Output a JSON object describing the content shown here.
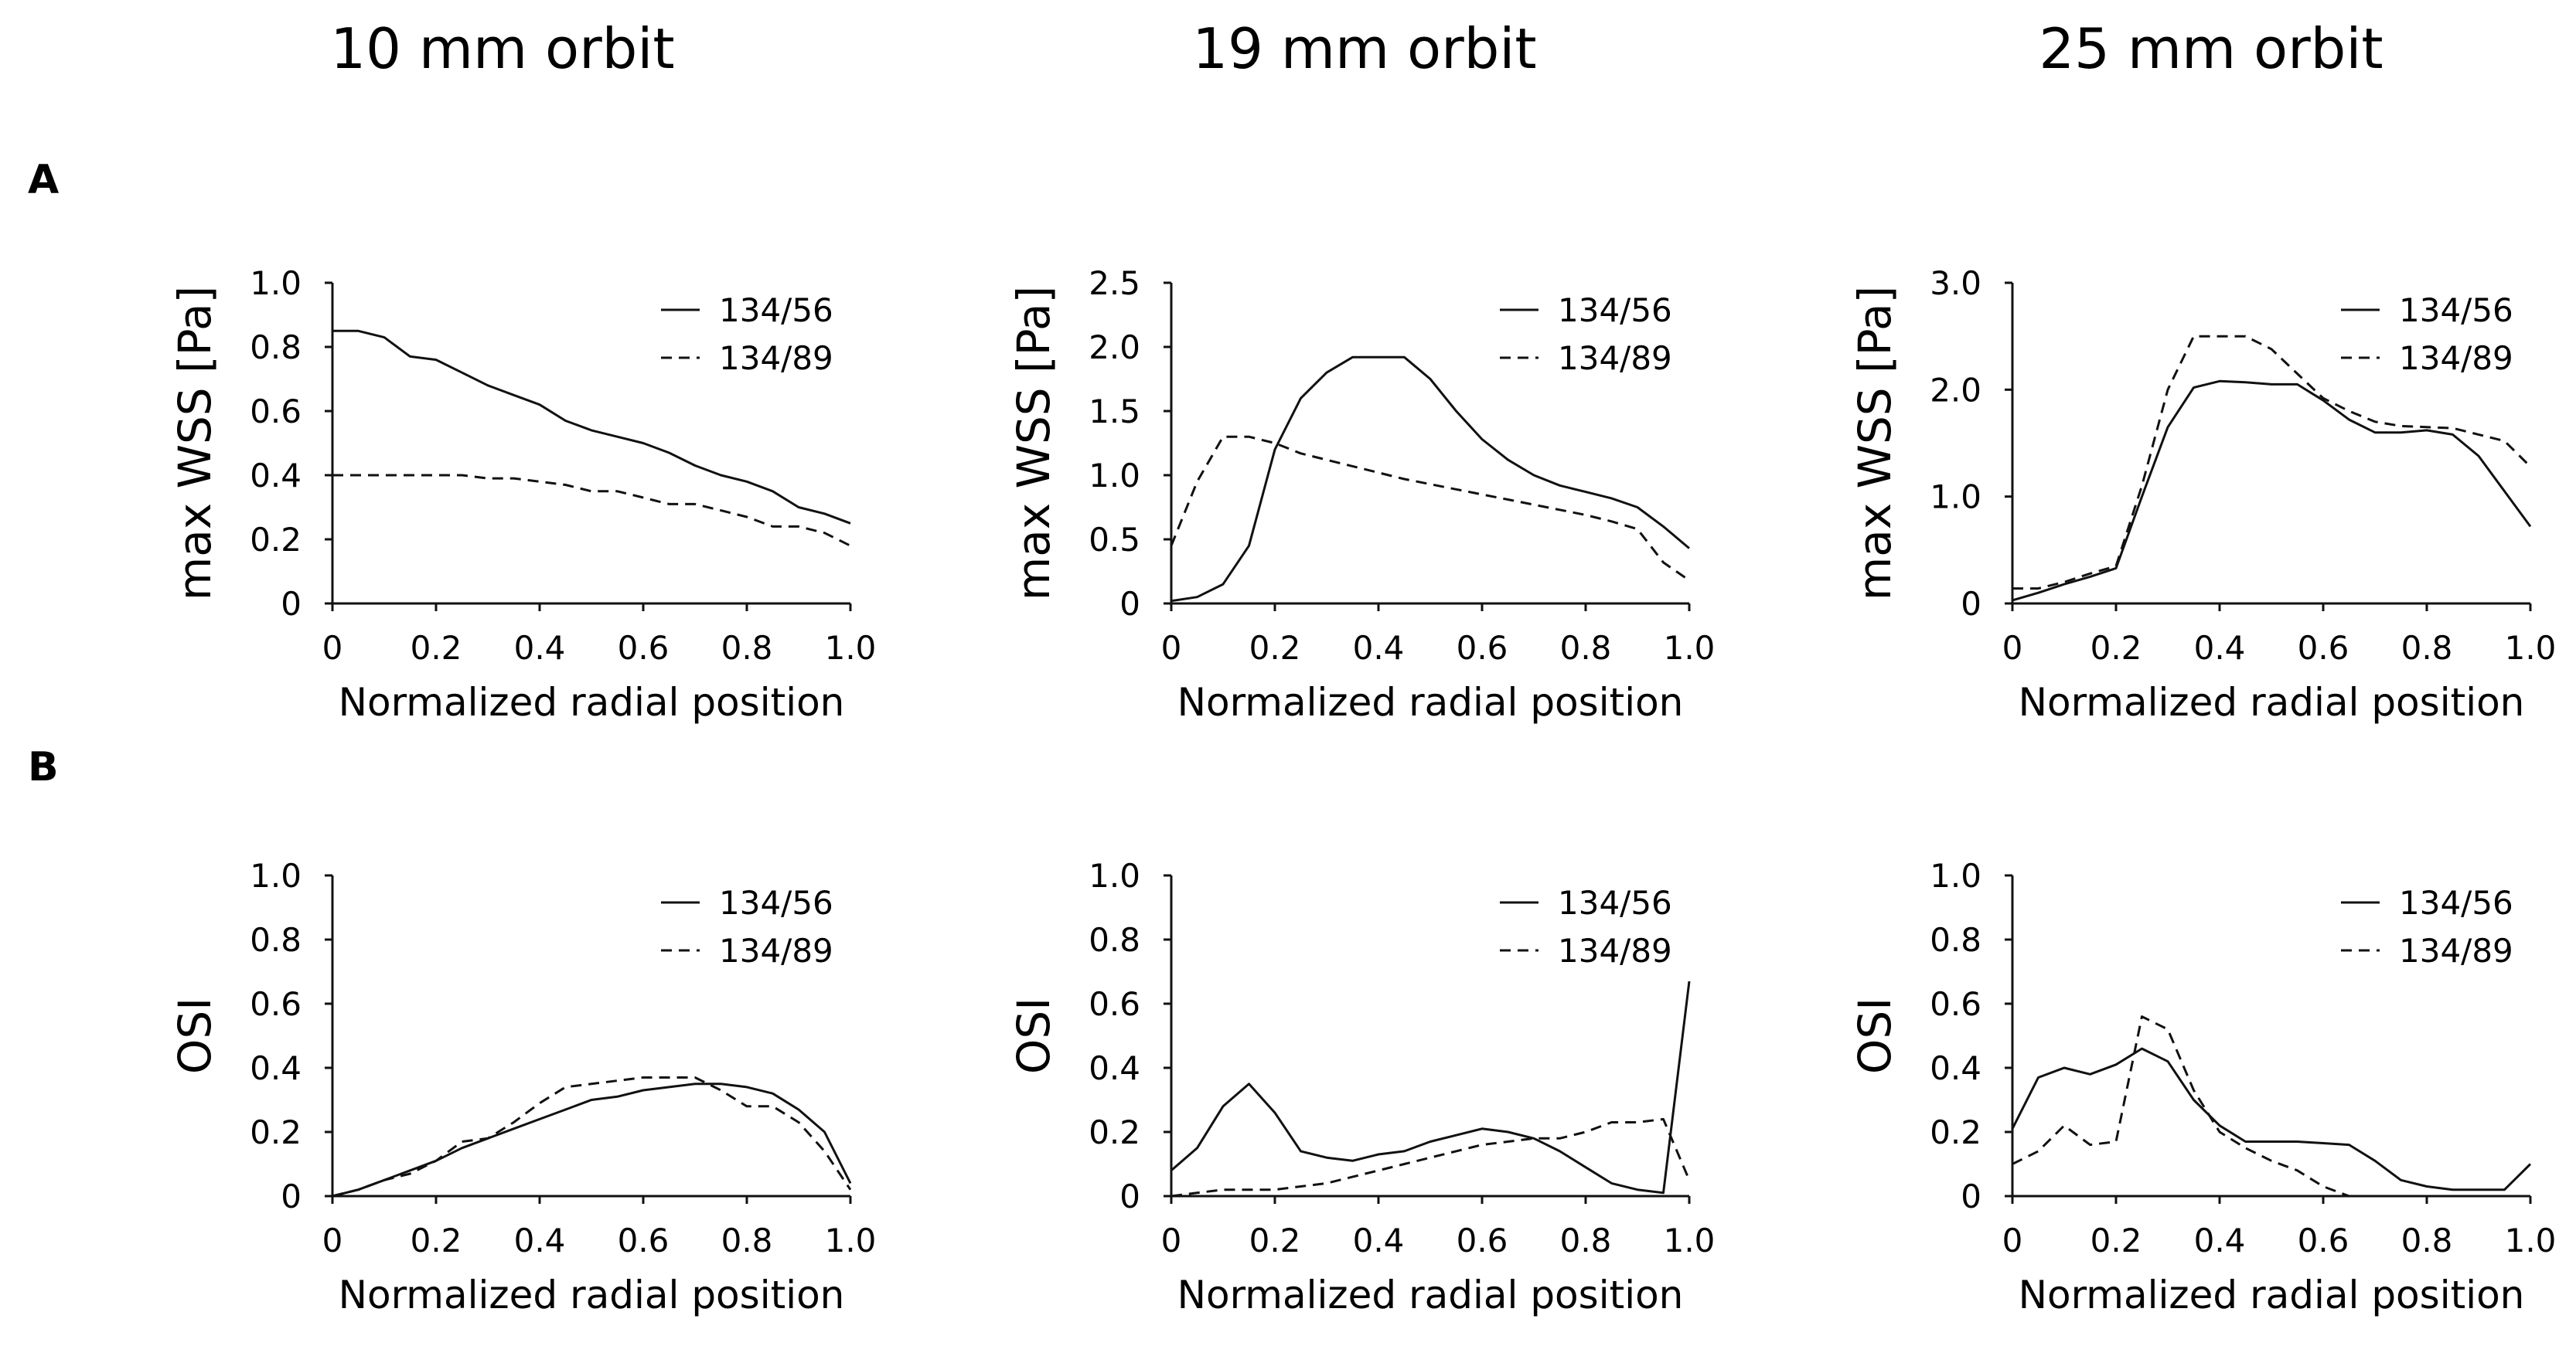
{
  "figure": {
    "column_titles": [
      "10 mm orbit",
      "19 mm orbit",
      "25 mm orbit"
    ],
    "row_labels": [
      "A",
      "B"
    ]
  },
  "chart_data": [
    {
      "type": "line",
      "title": "10 mm orbit",
      "row": "A",
      "xlabel": "Normalized radial position",
      "ylabel": "max WSS [Pa]",
      "xlim": [
        0,
        1
      ],
      "ylim": [
        0,
        1
      ],
      "xticks": [
        "0",
        "0.2",
        "0.4",
        "0.6",
        "0.8",
        "1.0"
      ],
      "yticks": [
        "0",
        "0.2",
        "0.4",
        "0.6",
        "0.8",
        "1.0"
      ],
      "legend_position": "top-right",
      "grid": false,
      "x": [
        0,
        0.05,
        0.1,
        0.15,
        0.2,
        0.25,
        0.3,
        0.35,
        0.4,
        0.45,
        0.5,
        0.55,
        0.6,
        0.65,
        0.7,
        0.75,
        0.8,
        0.85,
        0.9,
        0.95,
        1.0
      ],
      "series": [
        {
          "name": "134/56",
          "style": "solid",
          "values": [
            0.85,
            0.85,
            0.83,
            0.77,
            0.76,
            0.72,
            0.68,
            0.65,
            0.62,
            0.57,
            0.54,
            0.52,
            0.5,
            0.47,
            0.43,
            0.4,
            0.38,
            0.35,
            0.3,
            0.28,
            0.25
          ]
        },
        {
          "name": "134/89",
          "style": "dashed",
          "values": [
            0.4,
            0.4,
            0.4,
            0.4,
            0.4,
            0.4,
            0.39,
            0.39,
            0.38,
            0.37,
            0.35,
            0.35,
            0.33,
            0.31,
            0.31,
            0.29,
            0.27,
            0.24,
            0.24,
            0.22,
            0.18
          ]
        }
      ]
    },
    {
      "type": "line",
      "title": "19 mm orbit",
      "row": "A",
      "xlabel": "Normalized radial position",
      "ylabel": "max WSS [Pa]",
      "xlim": [
        0,
        1
      ],
      "ylim": [
        0,
        2.5
      ],
      "xticks": [
        "0",
        "0.2",
        "0.4",
        "0.6",
        "0.8",
        "1.0"
      ],
      "yticks": [
        "0",
        "0.5",
        "1.0",
        "1.5",
        "2.0",
        "2.5"
      ],
      "legend_position": "top-right",
      "grid": false,
      "x": [
        0,
        0.05,
        0.1,
        0.15,
        0.2,
        0.25,
        0.3,
        0.35,
        0.4,
        0.45,
        0.5,
        0.55,
        0.6,
        0.65,
        0.7,
        0.75,
        0.8,
        0.85,
        0.9,
        0.95,
        1.0
      ],
      "series": [
        {
          "name": "134/56",
          "style": "solid",
          "values": [
            0.02,
            0.05,
            0.15,
            0.45,
            1.2,
            1.6,
            1.8,
            1.92,
            1.92,
            1.92,
            1.75,
            1.5,
            1.28,
            1.12,
            1.0,
            0.92,
            0.87,
            0.82,
            0.75,
            0.6,
            0.43
          ]
        },
        {
          "name": "134/89",
          "style": "dashed",
          "values": [
            0.45,
            0.95,
            1.3,
            1.3,
            1.25,
            1.17,
            1.12,
            1.07,
            1.02,
            0.97,
            0.93,
            0.89,
            0.85,
            0.81,
            0.77,
            0.73,
            0.69,
            0.64,
            0.58,
            0.32,
            0.18
          ]
        }
      ]
    },
    {
      "type": "line",
      "title": "25 mm orbit",
      "row": "A",
      "xlabel": "Normalized radial position",
      "ylabel": "max WSS [Pa]",
      "xlim": [
        0,
        1
      ],
      "ylim": [
        0,
        3
      ],
      "xticks": [
        "0",
        "0.2",
        "0.4",
        "0.6",
        "0.8",
        "1.0"
      ],
      "yticks": [
        "0",
        "1.0",
        "2.0",
        "3.0"
      ],
      "legend_position": "top-right",
      "grid": false,
      "x": [
        0,
        0.05,
        0.1,
        0.15,
        0.2,
        0.25,
        0.3,
        0.35,
        0.4,
        0.45,
        0.5,
        0.55,
        0.6,
        0.65,
        0.7,
        0.75,
        0.8,
        0.85,
        0.9,
        0.95,
        1.0
      ],
      "series": [
        {
          "name": "134/56",
          "style": "solid",
          "values": [
            0.03,
            0.1,
            0.18,
            0.25,
            0.33,
            1.0,
            1.65,
            2.02,
            2.08,
            2.07,
            2.05,
            2.05,
            1.9,
            1.72,
            1.6,
            1.6,
            1.62,
            1.58,
            1.38,
            1.05,
            0.72
          ]
        },
        {
          "name": "134/89",
          "style": "dashed",
          "values": [
            0.14,
            0.14,
            0.2,
            0.28,
            0.35,
            1.1,
            2.0,
            2.5,
            2.5,
            2.5,
            2.38,
            2.15,
            1.92,
            1.8,
            1.7,
            1.66,
            1.65,
            1.64,
            1.58,
            1.52,
            1.28
          ]
        }
      ]
    },
    {
      "type": "line",
      "title": "10 mm orbit",
      "row": "B",
      "xlabel": "Normalized radial position",
      "ylabel": "OSI",
      "xlim": [
        0,
        1
      ],
      "ylim": [
        0,
        1
      ],
      "xticks": [
        "0",
        "0.2",
        "0.4",
        "0.6",
        "0.8",
        "1.0"
      ],
      "yticks": [
        "0",
        "0.2",
        "0.4",
        "0.6",
        "0.8",
        "1.0"
      ],
      "legend_position": "top-right",
      "grid": false,
      "x": [
        0,
        0.05,
        0.1,
        0.15,
        0.2,
        0.25,
        0.3,
        0.35,
        0.4,
        0.45,
        0.5,
        0.55,
        0.6,
        0.65,
        0.7,
        0.75,
        0.8,
        0.85,
        0.9,
        0.95,
        1.0
      ],
      "series": [
        {
          "name": "134/56",
          "style": "solid",
          "values": [
            0.0,
            0.02,
            0.05,
            0.08,
            0.11,
            0.15,
            0.18,
            0.21,
            0.24,
            0.27,
            0.3,
            0.31,
            0.33,
            0.34,
            0.35,
            0.35,
            0.34,
            0.32,
            0.27,
            0.2,
            0.04
          ]
        },
        {
          "name": "134/89",
          "style": "dashed",
          "values": [
            0.0,
            0.02,
            0.05,
            0.07,
            0.11,
            0.17,
            0.18,
            0.23,
            0.29,
            0.34,
            0.35,
            0.36,
            0.37,
            0.37,
            0.37,
            0.33,
            0.28,
            0.28,
            0.23,
            0.14,
            0.02
          ]
        }
      ]
    },
    {
      "type": "line",
      "title": "19 mm orbit",
      "row": "B",
      "xlabel": "Normalized radial position",
      "ylabel": "OSI",
      "xlim": [
        0,
        1
      ],
      "ylim": [
        0,
        1
      ],
      "xticks": [
        "0",
        "0.2",
        "0.4",
        "0.6",
        "0.8",
        "1.0"
      ],
      "yticks": [
        "0",
        "0.2",
        "0.4",
        "0.6",
        "0.8",
        "1.0"
      ],
      "legend_position": "top-right",
      "grid": false,
      "x": [
        0,
        0.05,
        0.1,
        0.15,
        0.2,
        0.25,
        0.3,
        0.35,
        0.4,
        0.45,
        0.5,
        0.55,
        0.6,
        0.65,
        0.7,
        0.75,
        0.8,
        0.85,
        0.9,
        0.95,
        1.0
      ],
      "series": [
        {
          "name": "134/56",
          "style": "solid",
          "values": [
            0.08,
            0.15,
            0.28,
            0.35,
            0.26,
            0.14,
            0.12,
            0.11,
            0.13,
            0.14,
            0.17,
            0.19,
            0.21,
            0.2,
            0.18,
            0.14,
            0.09,
            0.04,
            0.02,
            0.01,
            0.67
          ]
        },
        {
          "name": "134/89",
          "style": "dashed",
          "values": [
            0.0,
            0.01,
            0.02,
            0.02,
            0.02,
            0.03,
            0.04,
            0.06,
            0.08,
            0.1,
            0.12,
            0.14,
            0.16,
            0.17,
            0.18,
            0.18,
            0.2,
            0.23,
            0.23,
            0.24,
            0.05
          ]
        }
      ]
    },
    {
      "type": "line",
      "title": "25 mm orbit",
      "row": "B",
      "xlabel": "Normalized radial position",
      "ylabel": "OSI",
      "xlim": [
        0,
        1
      ],
      "ylim": [
        0,
        1
      ],
      "xticks": [
        "0",
        "0.2",
        "0.4",
        "0.6",
        "0.8",
        "1.0"
      ],
      "yticks": [
        "0",
        "0.2",
        "0.4",
        "0.6",
        "0.8",
        "1.0"
      ],
      "legend_position": "top-right",
      "grid": false,
      "x": [
        0,
        0.05,
        0.1,
        0.15,
        0.2,
        0.25,
        0.3,
        0.35,
        0.4,
        0.45,
        0.5,
        0.55,
        0.6,
        0.65,
        0.7,
        0.75,
        0.8,
        0.85,
        0.9,
        0.95,
        1.0
      ],
      "series": [
        {
          "name": "134/56",
          "style": "solid",
          "values": [
            0.21,
            0.37,
            0.4,
            0.38,
            0.41,
            0.46,
            0.42,
            0.3,
            0.22,
            0.17,
            0.17,
            0.17,
            0.165,
            0.16,
            0.11,
            0.05,
            0.03,
            0.02,
            0.02,
            0.02,
            0.1
          ]
        },
        {
          "name": "134/89",
          "style": "dashed",
          "values": [
            0.1,
            0.14,
            0.22,
            0.16,
            0.17,
            0.56,
            0.52,
            0.33,
            0.2,
            0.15,
            0.11,
            0.08,
            0.03,
            0.0,
            0.0,
            0.0,
            0.0,
            0.0,
            0.0,
            0.0,
            0.0
          ]
        }
      ]
    }
  ]
}
